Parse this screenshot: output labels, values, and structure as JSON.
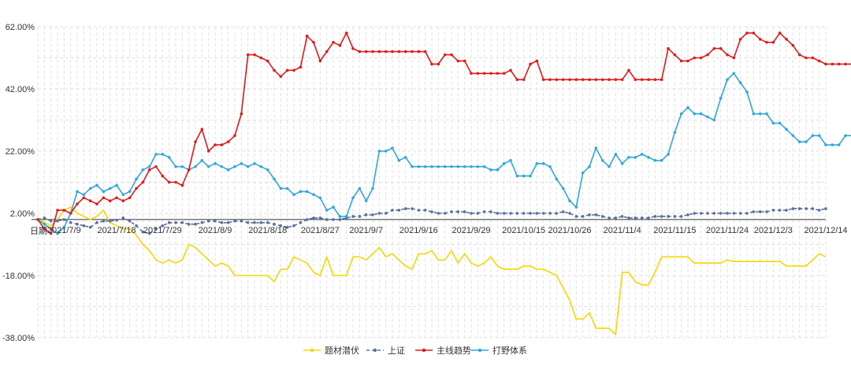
{
  "chart_data": {
    "type": "line",
    "xlabel": "日期",
    "ylim": [
      -38,
      62
    ],
    "yticks": [
      62,
      42,
      22,
      2,
      -18,
      -38
    ],
    "ytick_labels": [
      "62.00%",
      "42.00%",
      "22.00%",
      "2.00%",
      "-18.00%",
      "-38.00%"
    ],
    "x_tick_labels": [
      "2021/7/9",
      "2021/7/18",
      "2021/7/29",
      "2021/8/9",
      "2021/8/18",
      "2021/8/27",
      "2021/9/7",
      "2021/9/16",
      "2021/9/29",
      "2021/10/15",
      "2021/10/26",
      "2021/11/4",
      "2021/11/15",
      "2021/11/24",
      "2021/12/3",
      "2021/12/14"
    ],
    "grid": true,
    "legend_position": "bottom",
    "series": [
      {
        "name": "题材潜伏",
        "color": "#f5d800",
        "marker": "none",
        "values": [
          0.5,
          -1,
          -2,
          0,
          3,
          4,
          2,
          1,
          0,
          1,
          3,
          -1,
          -2,
          -3,
          -3,
          -5,
          -8,
          -10,
          -13,
          -14,
          -13,
          -14,
          -13,
          -8,
          -9,
          -11,
          -13,
          -15,
          -14,
          -15,
          -18,
          -18,
          -18,
          -18,
          -18,
          -18,
          -20,
          -16,
          -16,
          -12,
          -13,
          -14,
          -17,
          -18,
          -12,
          -18,
          -18,
          -18,
          -12,
          -12,
          -13,
          -11,
          -9,
          -12,
          -11,
          -13,
          -15,
          -16,
          -11,
          -11,
          -10,
          -13,
          -13,
          -10,
          -14,
          -11,
          -14,
          -15,
          -14,
          -12,
          -15,
          -16,
          -16,
          -16,
          -15,
          -15,
          -16,
          -16,
          -17,
          -18,
          -22,
          -26,
          -32,
          -32,
          -30,
          -35,
          -35,
          -35,
          -37,
          -17,
          -17,
          -20,
          -21,
          -21,
          -17,
          -12,
          -12,
          -12,
          -12,
          -12,
          -14,
          -14,
          -14,
          -14,
          -14,
          -13,
          -13.5,
          -13.5,
          -13.5,
          -13.5,
          -13.5,
          -13.5,
          -13.5,
          -13.5,
          -15,
          -15,
          -15,
          -15,
          -13,
          -11,
          -12
        ]
      },
      {
        "name": "上证",
        "color": "#5b6f9e",
        "marker": "dot",
        "dashed": true,
        "values": [
          0,
          0.5,
          -0.5,
          -0.5,
          0,
          -1,
          -1.5,
          -2,
          -2.5,
          -1,
          -0.5,
          -0.5,
          -0.2,
          0.5,
          -0.5,
          -2,
          -4,
          -4.5,
          -3,
          -2,
          -1,
          -1,
          -1,
          -1.5,
          -1.5,
          -1,
          -0.5,
          -0.5,
          -1,
          -1,
          -0.5,
          -0.5,
          -1,
          -1,
          -1,
          -1,
          -1.5,
          -2,
          -2.5,
          -2,
          -1,
          0,
          0.5,
          0.5,
          0,
          0,
          0,
          0.5,
          1,
          1,
          1.5,
          1.5,
          2,
          2,
          3,
          3,
          3.5,
          3.5,
          3,
          3,
          2.5,
          2,
          2,
          2.5,
          2.5,
          2.5,
          2,
          2,
          2.5,
          2.5,
          2,
          2,
          2,
          2,
          2,
          2,
          2,
          2,
          2,
          2,
          2.5,
          2,
          1,
          1,
          1.5,
          1.5,
          1,
          0.5,
          0.5,
          1,
          0.5,
          0.5,
          0.5,
          0.5,
          1,
          1,
          1,
          1,
          1,
          1.5,
          2,
          2,
          2,
          2,
          2,
          2,
          2,
          2,
          2,
          2.5,
          2.5,
          2.5,
          3,
          3,
          3,
          3.5,
          3.5,
          3.5,
          3.5,
          3,
          3.5
        ]
      },
      {
        "name": "主线趋势",
        "color": "#e31a1a",
        "marker": "dot",
        "values": [
          0,
          -3,
          -4.5,
          3,
          3,
          2,
          5,
          7,
          6,
          5,
          7,
          6,
          7,
          6,
          7,
          10,
          12,
          16,
          17,
          14,
          12,
          12,
          11,
          16,
          25,
          29,
          22,
          24,
          24,
          25,
          27,
          34,
          53,
          53,
          52,
          51,
          48,
          46,
          48,
          48,
          49,
          59,
          57,
          51,
          54,
          57,
          56,
          60,
          55,
          54,
          54,
          54,
          54,
          54,
          54,
          54,
          54,
          54,
          54,
          54,
          50,
          50,
          53,
          53,
          51,
          51,
          47,
          47,
          47,
          47,
          47,
          47,
          48,
          45,
          45,
          50,
          51,
          45,
          45,
          45,
          45,
          45,
          45,
          45,
          45,
          45,
          45,
          45,
          45,
          45,
          48,
          45,
          45,
          45,
          45,
          45,
          55,
          53,
          51,
          51,
          52,
          52,
          53,
          55,
          55,
          53,
          52,
          58,
          60,
          60,
          58,
          57,
          57,
          60,
          58,
          56,
          53,
          52,
          52,
          51,
          50,
          50,
          50,
          50,
          50,
          50,
          50,
          50,
          50
        ]
      },
      {
        "name": "打野体系",
        "color": "#2fa8dc",
        "marker": "dot",
        "values": [
          0,
          -1.5,
          -3,
          -4.5,
          -2.5,
          2,
          9,
          8,
          10,
          11,
          9,
          10,
          11,
          8,
          9,
          13,
          16,
          17,
          21,
          21,
          20,
          17,
          17,
          16,
          17,
          19,
          17,
          18,
          17,
          16,
          17,
          18,
          17,
          18,
          17,
          16,
          13,
          10,
          10,
          8,
          9,
          9,
          8,
          7,
          3,
          4,
          1,
          1,
          7,
          10,
          6,
          10,
          22,
          22,
          23,
          19,
          20,
          17,
          17,
          17,
          17,
          17,
          17,
          17,
          17,
          17,
          17,
          17,
          17,
          16,
          16,
          18,
          19,
          14,
          14,
          14,
          18,
          18,
          17,
          13,
          10,
          6,
          4,
          15,
          17,
          23,
          19,
          17,
          21,
          18,
          20,
          20,
          21,
          20,
          19,
          19,
          21,
          28,
          34,
          36,
          34,
          34,
          33,
          32,
          39,
          45,
          47,
          44,
          41,
          34,
          34,
          34,
          31,
          31,
          29,
          27,
          25,
          25,
          27,
          27,
          24,
          24,
          24,
          27,
          27,
          26
        ]
      }
    ]
  }
}
